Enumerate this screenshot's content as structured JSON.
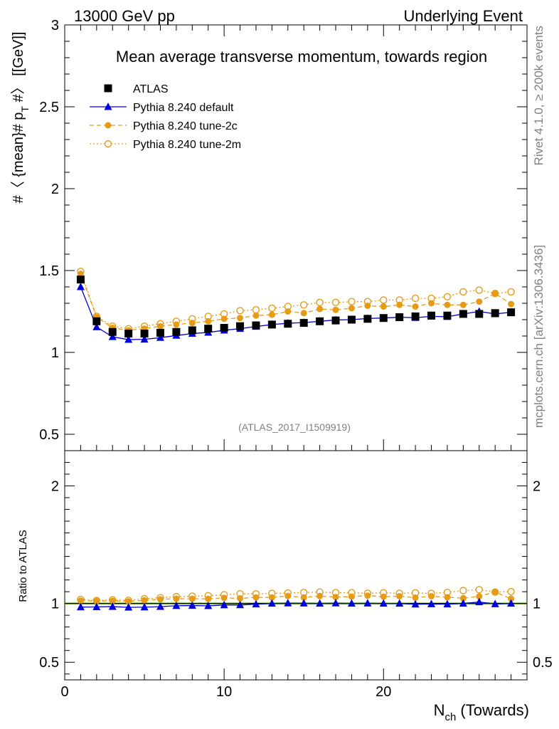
{
  "header": {
    "left": "13000 GeV pp",
    "right": "Underlying Event"
  },
  "side_text": {
    "rivet": "Rivet 4.1.0, ≥ 200k events",
    "site": "mcplots.cern.ch [arXiv:1306.3436]"
  },
  "chart_data": [
    {
      "type": "line",
      "title": "Mean average transverse momentum, towards region",
      "ylabel": "#〈 {mean}# p_T #〉 [[GeV]]",
      "ylabel_main": "#〈 {mean}# p",
      "ylabel_sub": "T",
      "ylabel_tail": " #〉 [[GeV]]",
      "xlabel_main": "N",
      "xlabel_sub": "ch",
      "xlabel_tail": " (Towards)",
      "xlim": [
        0,
        29
      ],
      "ylim": [
        0.4,
        3.0
      ],
      "x_ticks": [
        0,
        10,
        20
      ],
      "y_ticks": [
        0.5,
        1,
        1.5,
        2,
        2.5,
        3
      ],
      "y_tick_labels": [
        "0.5",
        "1",
        "1.5",
        "2",
        "2.5",
        "3"
      ],
      "watermark": "(ATLAS_2017_I1509919)",
      "x": [
        1,
        2,
        3,
        4,
        5,
        6,
        7,
        8,
        9,
        10,
        11,
        12,
        13,
        14,
        15,
        16,
        17,
        18,
        19,
        20,
        21,
        22,
        23,
        24,
        25,
        26,
        27,
        28
      ],
      "series": [
        {
          "name": "ATLAS",
          "color": "#000000",
          "style": "data",
          "values": [
            1.445,
            1.19,
            1.125,
            1.115,
            1.115,
            1.12,
            1.125,
            1.135,
            1.145,
            1.15,
            1.16,
            1.165,
            1.17,
            1.175,
            1.18,
            1.19,
            1.195,
            1.2,
            1.205,
            1.21,
            1.215,
            1.22,
            1.225,
            1.225,
            1.235,
            1.235,
            1.24,
            1.245
          ]
        },
        {
          "name": "Pythia 8.240 default",
          "color": "#0000dd",
          "style": "solid-triangle",
          "values": [
            1.4,
            1.155,
            1.095,
            1.078,
            1.08,
            1.09,
            1.103,
            1.115,
            1.122,
            1.135,
            1.145,
            1.158,
            1.17,
            1.178,
            1.182,
            1.19,
            1.198,
            1.2,
            1.207,
            1.21,
            1.215,
            1.212,
            1.22,
            1.218,
            1.235,
            1.25,
            1.235,
            1.245
          ]
        },
        {
          "name": "Pythia 8.240 tune-2c",
          "color": "#e69b17",
          "style": "dashed-filled-circle",
          "values": [
            1.48,
            1.215,
            1.15,
            1.135,
            1.145,
            1.16,
            1.17,
            1.18,
            1.19,
            1.205,
            1.21,
            1.225,
            1.23,
            1.25,
            1.24,
            1.265,
            1.26,
            1.27,
            1.285,
            1.28,
            1.29,
            1.28,
            1.3,
            1.29,
            1.29,
            1.31,
            1.36,
            1.295
          ]
        },
        {
          "name": "Pythia 8.240 tune-2m",
          "color": "#e69b17",
          "style": "dotted-open-circle",
          "values": [
            1.495,
            1.22,
            1.16,
            1.145,
            1.16,
            1.175,
            1.19,
            1.205,
            1.22,
            1.235,
            1.255,
            1.26,
            1.27,
            1.28,
            1.29,
            1.305,
            1.305,
            1.31,
            1.31,
            1.32,
            1.32,
            1.33,
            1.33,
            1.34,
            1.37,
            1.38,
            1.36,
            1.37
          ]
        }
      ]
    },
    {
      "type": "line",
      "title": "",
      "ylabel": "Ratio to ATLAS",
      "xlim": [
        0,
        29
      ],
      "ylim": [
        0.35,
        2.3
      ],
      "y_ticks": [
        0.5,
        1,
        2
      ],
      "y_tick_labels": [
        "0.5",
        "1",
        "2"
      ],
      "reference_band": [
        0.99,
        1.01
      ]
    }
  ]
}
